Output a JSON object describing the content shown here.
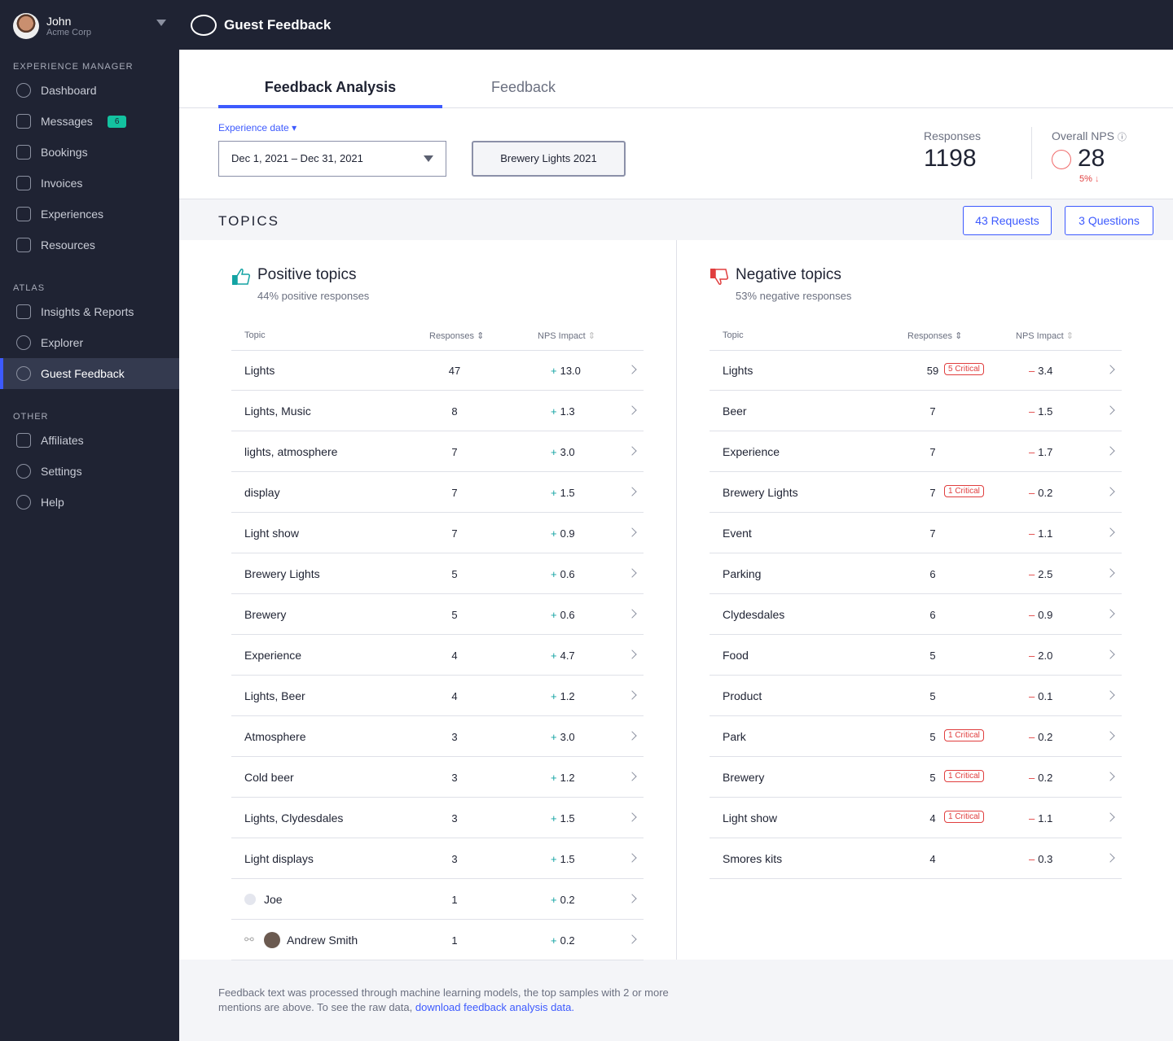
{
  "user": {
    "name": "John",
    "org": "Acme Corp"
  },
  "header": {
    "title": "Guest Feedback"
  },
  "sidebar": {
    "sections": [
      {
        "title": "EXPERIENCE MANAGER",
        "items": [
          {
            "label": "Dashboard",
            "icon": "dashboard-icon"
          },
          {
            "label": "Messages",
            "icon": "envelope-icon",
            "badge": "6"
          },
          {
            "label": "Bookings",
            "icon": "calendar-icon"
          },
          {
            "label": "Invoices",
            "icon": "invoice-icon"
          },
          {
            "label": "Experiences",
            "icon": "map-icon"
          },
          {
            "label": "Resources",
            "icon": "link-icon"
          }
        ]
      },
      {
        "title": "ATLAS",
        "items": [
          {
            "label": "Insights & Reports",
            "icon": "bar-chart-icon"
          },
          {
            "label": "Explorer",
            "icon": "explorer-icon"
          },
          {
            "label": "Guest Feedback",
            "icon": "chat-bubble-icon",
            "active": true
          }
        ]
      },
      {
        "title": "OTHER",
        "items": [
          {
            "label": "Affiliates",
            "icon": "network-icon"
          },
          {
            "label": "Settings",
            "icon": "gear-icon"
          },
          {
            "label": "Help",
            "icon": "help-icon"
          }
        ]
      }
    ]
  },
  "tabs": [
    "Feedback Analysis",
    "Feedback"
  ],
  "filters": {
    "date_label": "Experience date",
    "date_value": "Dec 1, 2021 – Dec 31, 2021",
    "event": "Brewery Lights 2021"
  },
  "stats": {
    "responses_label": "Responses",
    "responses": "1198",
    "nps_label": "Overall NPS",
    "nps": "28",
    "nps_change": "5%",
    "nps_color": "#e03e3e"
  },
  "topics": {
    "title": "TOPICS",
    "requests": "43 Requests",
    "questions": "3 Questions",
    "columns": [
      "Topic",
      "Responses",
      "NPS Impact"
    ]
  },
  "positive": {
    "title": "Positive topics",
    "subtitle": "44% positive responses",
    "color": "#13a3a3",
    "rows": [
      [
        "Lights",
        "47",
        "13.0"
      ],
      [
        "Lights, Music",
        "8",
        "1.3"
      ],
      [
        "lights, atmosphere",
        "7",
        "3.0"
      ],
      [
        "display",
        "7",
        "1.5"
      ],
      [
        "Light show",
        "7",
        "0.9"
      ],
      [
        "Brewery Lights",
        "5",
        "0.6"
      ],
      [
        "Brewery",
        "5",
        "0.6"
      ],
      [
        "Experience",
        "4",
        "4.7"
      ],
      [
        "Lights, Beer",
        "4",
        "1.2"
      ],
      [
        "Atmosphere",
        "3",
        "3.0"
      ],
      [
        "Cold beer",
        "3",
        "1.2"
      ],
      [
        "Lights, Clydesdales",
        "3",
        "1.5"
      ],
      [
        "Light displays",
        "3",
        "1.5"
      ],
      [
        "Joe",
        "1",
        "0.2"
      ],
      [
        "Andrew Smith",
        "1",
        "0.2"
      ]
    ]
  },
  "negative": {
    "title": "Negative topics",
    "subtitle": "53% negative responses",
    "color": "#e03e3e",
    "rows": [
      [
        "Lights",
        "59",
        "3.4",
        "5 Critical"
      ],
      [
        "Beer",
        "7",
        "1.5"
      ],
      [
        "Experience",
        "7",
        "1.7"
      ],
      [
        "Brewery Lights",
        "7",
        "0.2",
        "1 Critical"
      ],
      [
        "Event",
        "7",
        "1.1"
      ],
      [
        "Parking",
        "6",
        "2.5"
      ],
      [
        "Clydesdales",
        "6",
        "0.9"
      ],
      [
        "Food",
        "5",
        "2.0"
      ],
      [
        "Product",
        "5",
        "0.1"
      ],
      [
        "Park",
        "5",
        "0.2",
        "1 Critical"
      ],
      [
        "Brewery",
        "5",
        "0.2",
        "1 Critical"
      ],
      [
        "Light show",
        "4",
        "1.1",
        "1 Critical"
      ],
      [
        "Smores kits",
        "4",
        "0.3"
      ]
    ]
  },
  "footer": {
    "text": "Feedback text was processed through machine learning models, the top samples with 2 or more mentions are above. To see the raw data, ",
    "link": "download feedback analysis data."
  }
}
